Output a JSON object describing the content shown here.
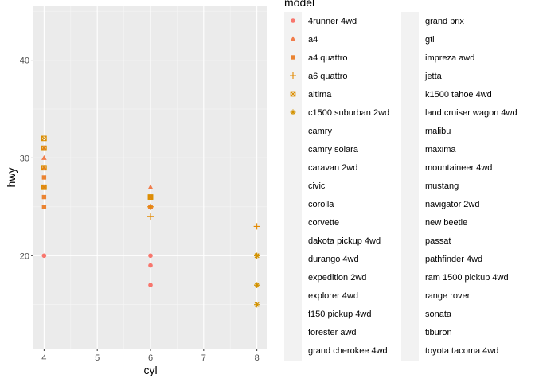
{
  "chart_data": {
    "type": "scatter",
    "xlabel": "cyl",
    "ylabel": "hwy",
    "xlim": [
      3.8,
      8.2
    ],
    "ylim": [
      10.5,
      45.5
    ],
    "x_ticks": [
      4,
      5,
      6,
      7,
      8
    ],
    "y_ticks": [
      20,
      30,
      40
    ],
    "grid": true,
    "legend_title": "model",
    "legend_position": "right",
    "series": [
      {
        "name": "4runner 4wd",
        "color": "#F8766D",
        "shape": "circle",
        "points": [
          [
            4,
            20
          ],
          [
            6,
            20
          ],
          [
            6,
            19
          ],
          [
            6,
            17
          ]
        ]
      },
      {
        "name": "a4",
        "color": "#F17D4C",
        "shape": "triangle",
        "points": [
          [
            4,
            29
          ],
          [
            4,
            29
          ],
          [
            4,
            31
          ],
          [
            4,
            30
          ],
          [
            6,
            26
          ],
          [
            6,
            25
          ],
          [
            6,
            27
          ]
        ]
      },
      {
        "name": "a4 quattro",
        "color": "#EA8331",
        "shape": "square",
        "points": [
          [
            4,
            28
          ],
          [
            4,
            27
          ],
          [
            4,
            26
          ],
          [
            4,
            25
          ],
          [
            6,
            25
          ],
          [
            6,
            25
          ],
          [
            6,
            26
          ],
          [
            6,
            25
          ]
        ]
      },
      {
        "name": "a6 quattro",
        "color": "#E38900",
        "shape": "plus",
        "points": [
          [
            6,
            24
          ],
          [
            6,
            25
          ],
          [
            8,
            23
          ]
        ]
      },
      {
        "name": "altima",
        "color": "#DB8E00",
        "shape": "square-cross",
        "points": [
          [
            4,
            31
          ],
          [
            4,
            32
          ],
          [
            4,
            27
          ],
          [
            4,
            29
          ],
          [
            6,
            26
          ],
          [
            6,
            26
          ]
        ]
      },
      {
        "name": "c1500 suburban 2wd",
        "color": "#D39200",
        "shape": "asterisk",
        "points": [
          [
            8,
            20
          ],
          [
            8,
            15
          ],
          [
            8,
            20
          ],
          [
            8,
            17
          ],
          [
            8,
            17
          ]
        ]
      }
    ],
    "legend_entries": [
      "4runner 4wd",
      "a4",
      "a4 quattro",
      "a6 quattro",
      "altima",
      "c1500 suburban 2wd",
      "camry",
      "camry solara",
      "caravan 2wd",
      "civic",
      "corolla",
      "corvette",
      "dakota pickup 4wd",
      "durango 4wd",
      "expedition 2wd",
      "explorer 4wd",
      "f150 pickup 4wd",
      "forester awd",
      "grand cherokee 4wd",
      "grand prix",
      "gti",
      "impreza awd",
      "jetta",
      "k1500 tahoe 4wd",
      "land cruiser wagon 4wd",
      "malibu",
      "maxima",
      "mountaineer 4wd",
      "mustang",
      "navigator 2wd",
      "new beetle",
      "passat",
      "pathfinder 4wd",
      "ram 1500 pickup 4wd",
      "range rover",
      "sonata",
      "tiburon",
      "toyota tacoma 4wd"
    ]
  }
}
